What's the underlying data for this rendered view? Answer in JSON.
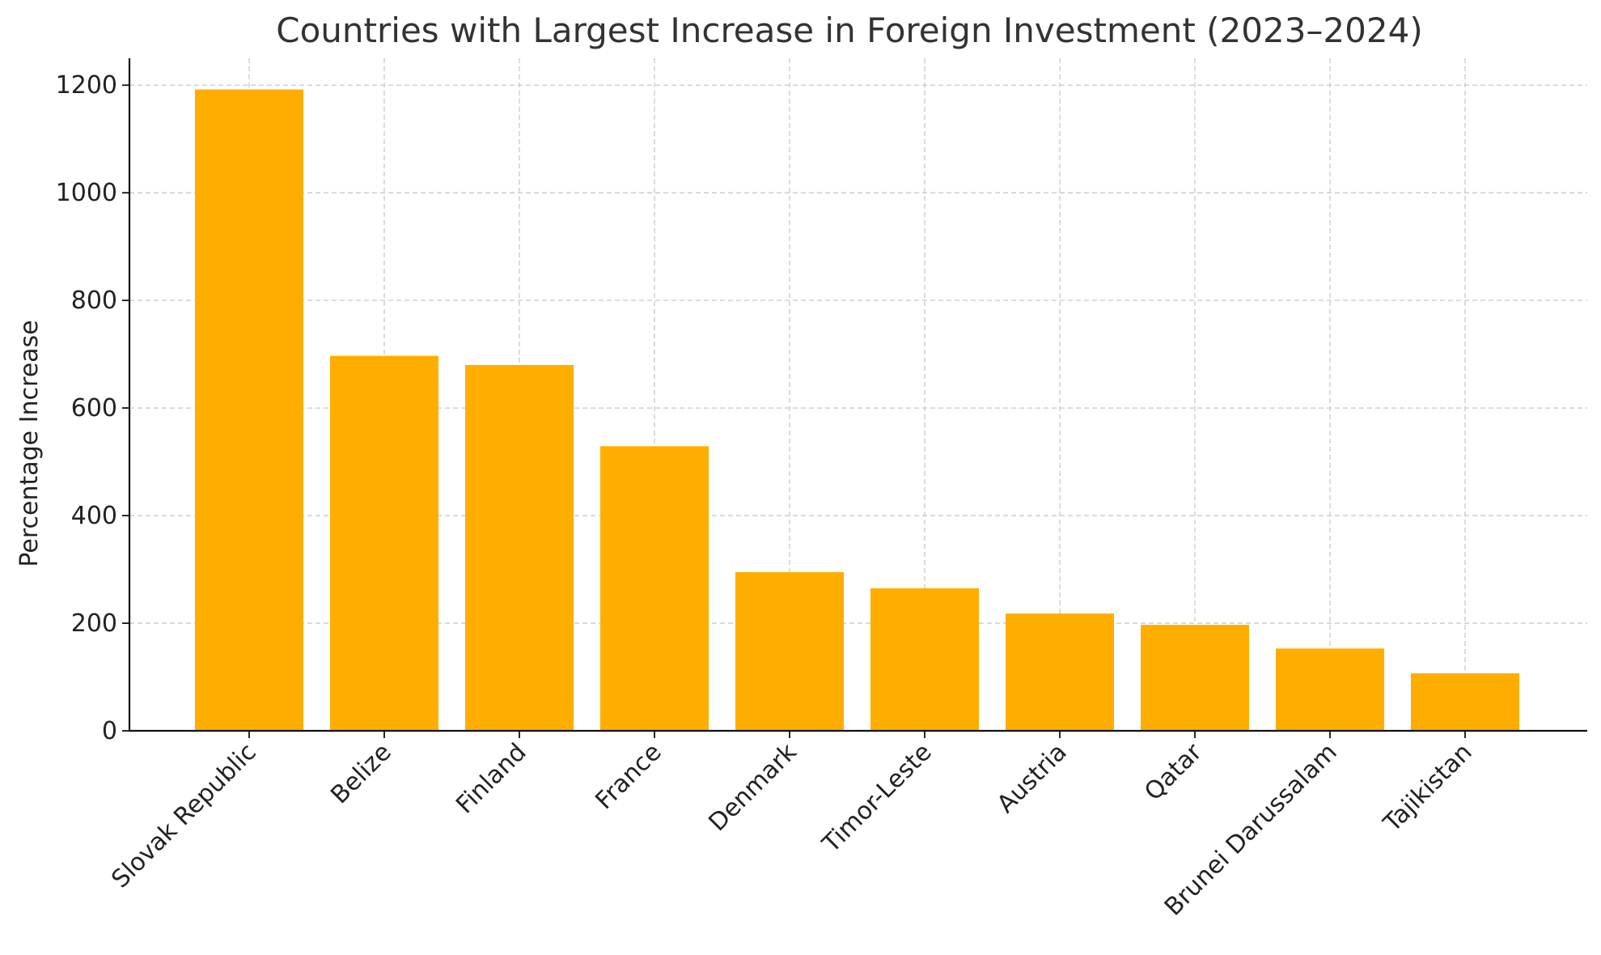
{
  "chart_data": {
    "type": "bar",
    "title": "Countries with Largest Increase in Foreign Investment (2023–2024)",
    "xlabel": "",
    "ylabel": "Percentage Increase",
    "categories": [
      "Slovak Republic",
      "Belize",
      "Finland",
      "France",
      "Denmark",
      "Timor-Leste",
      "Austria",
      "Qatar",
      "Brunei Darussalam",
      "Tajikistan"
    ],
    "values": [
      1192,
      697,
      680,
      529,
      295,
      265,
      218,
      197,
      153,
      107
    ],
    "ylim": [
      0,
      1250
    ],
    "yticks": [
      0,
      200,
      400,
      600,
      800,
      1000,
      1200
    ],
    "grid": true,
    "legend": "none",
    "bar_color": "#FFAE00"
  }
}
